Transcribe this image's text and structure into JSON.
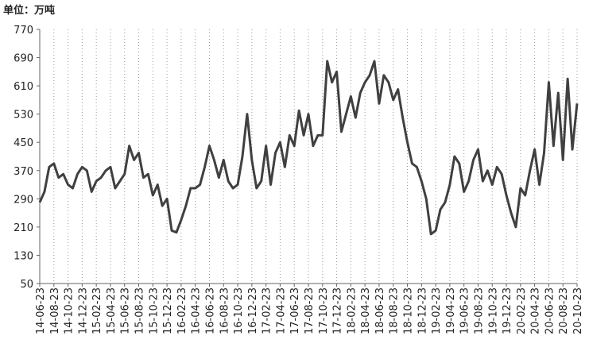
{
  "chart_data": {
    "type": "line",
    "title": "单位：万吨",
    "categories": [
      "14-06-23",
      null,
      null,
      "14-08-23",
      null,
      null,
      "14-10-23",
      null,
      null,
      "14-12-23",
      null,
      null,
      "15-02-23",
      null,
      null,
      "15-04-23",
      null,
      null,
      "15-06-23",
      null,
      null,
      "15-08-23",
      null,
      null,
      "15-10-23",
      null,
      null,
      "15-12-23",
      null,
      null,
      "16-02-23",
      null,
      null,
      "16-04-23",
      null,
      null,
      "16-06-23",
      null,
      null,
      "16-08-23",
      null,
      null,
      "16-10-23",
      null,
      null,
      "16-12-23",
      null,
      null,
      "17-02-23",
      null,
      null,
      "17-04-23",
      null,
      null,
      "17-06-23",
      null,
      null,
      "17-08-23",
      null,
      null,
      "17-10-23",
      null,
      null,
      "17-12-23",
      null,
      null,
      "18-02-23",
      null,
      null,
      "18-04-23",
      null,
      null,
      "18-06-23",
      null,
      null,
      "18-08-23",
      null,
      null,
      "18-10-23",
      null,
      null,
      "18-12-23",
      null,
      null,
      "19-02-23",
      null,
      null,
      "19-04-23",
      null,
      null,
      "19-06-23",
      null,
      null,
      "19-08-23",
      null,
      null,
      "19-10-23",
      null,
      null,
      "19-12-23",
      null,
      null,
      "20-02-23",
      null,
      null,
      "20-04-23",
      null,
      null,
      "20-06-23",
      null,
      null,
      "20-08-23",
      null,
      null,
      "20-10-23"
    ],
    "series": [
      {
        "color": "#404040",
        "values": [
          280,
          310,
          380,
          390,
          350,
          360,
          330,
          320,
          360,
          380,
          370,
          310,
          340,
          350,
          370,
          380,
          320,
          340,
          360,
          440,
          400,
          420,
          350,
          360,
          300,
          330,
          270,
          290,
          200,
          195,
          230,
          270,
          320,
          320,
          330,
          380,
          440,
          400,
          350,
          400,
          340,
          320,
          330,
          410,
          530,
          400,
          320,
          340,
          440,
          330,
          420,
          450,
          380,
          470,
          440,
          540,
          470,
          530,
          440,
          470,
          470,
          680,
          620,
          650,
          480,
          530,
          580,
          520,
          590,
          620,
          640,
          680,
          560,
          640,
          620,
          570,
          600,
          520,
          450,
          390,
          380,
          340,
          290,
          190,
          200,
          260,
          280,
          330,
          410,
          390,
          310,
          340,
          400,
          430,
          340,
          370,
          330,
          380,
          360,
          300,
          250,
          210,
          320,
          300,
          370,
          430,
          330,
          420,
          620,
          440,
          590,
          400,
          630,
          430,
          560
        ]
      }
    ],
    "ylim": [
      50,
      770
    ],
    "yticks": [
      50,
      130,
      210,
      290,
      370,
      450,
      530,
      610,
      690,
      770
    ],
    "grid": "x"
  }
}
